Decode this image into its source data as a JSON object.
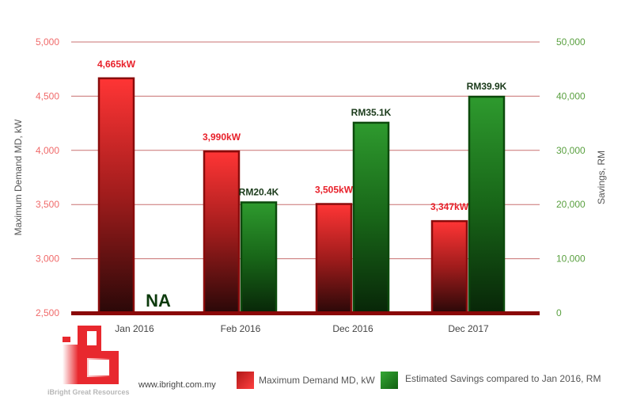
{
  "chart_data": {
    "type": "bar",
    "categories": [
      "Jan 2016",
      "Feb 2016",
      "Dec 2016",
      "Dec 2017"
    ],
    "series": [
      {
        "name": "Maximum Demand MD, kW",
        "axis": "left",
        "values": [
          4665,
          3990,
          3505,
          3347
        ],
        "labels": [
          "4,665kW",
          "3,990kW",
          "3,505kW",
          "3,347kW"
        ],
        "color": "#ff3333"
      },
      {
        "name": "Estimated Savings compared to Jan 2016, RM",
        "axis": "right",
        "values": [
          null,
          20400,
          35100,
          39900
        ],
        "labels": [
          "NA",
          "RM20.4K",
          "RM35.1K",
          "RM39.9K"
        ],
        "color": "#2a9a2a"
      }
    ],
    "ylabel": "Maximum Demand MD, kW",
    "ylabel_right": "Savings, RM",
    "ylim": [
      2500,
      5000
    ],
    "ylim_right": [
      0,
      50000
    ],
    "yticks": [
      "2,500",
      "3,000",
      "3,500",
      "4,000",
      "4,500",
      "5,000"
    ],
    "yticks_right": [
      "0",
      "10,000",
      "20,000",
      "30,000",
      "40,000",
      "50,000"
    ],
    "grid": true,
    "legend": "bottom-right"
  },
  "footer": {
    "brand": "iBright Great Resources",
    "website": "www.ibright.com.my"
  },
  "colors": {
    "left_axis": "#f06a6a",
    "right_axis": "#5aa040",
    "grid": "#c87070"
  }
}
